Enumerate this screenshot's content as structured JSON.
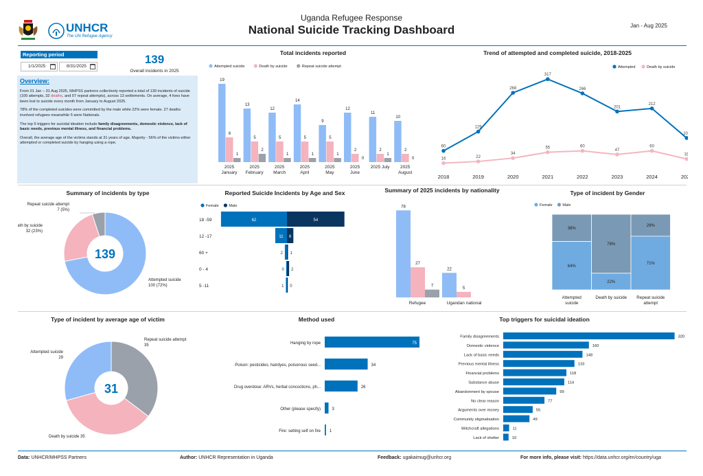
{
  "header": {
    "subtitle": "Uganda Refugee Response",
    "title": "National Suicide Tracking Dashboard",
    "date_range": "Jan - Aug 2025",
    "logo_word": "UNHCR",
    "logo_tagline": "The UN Refugee Agency"
  },
  "reporting": {
    "label": "Reporting period",
    "start": "1/1/2025",
    "end": "8/31/2025",
    "total": "139",
    "total_label": "Overall incidents in 2025"
  },
  "overview": {
    "title": "Overview:",
    "p1_a": "From 01 Jan – 31 Aug 2025, MHPSS partners collectively reported a total of 139 incidents of suicide (100 attempts, 32 ",
    "p1_red": "deaths",
    "p1_b": ", and 07 repeat attempts), across 13 settlements. On average, 4 lives have been lost to suicide every month from January to August 2025.",
    "p2": "78% of the completed suicides were committed by the male while 22% were female. 27 deaths involved refugees meanwhile 5 were Nationals.",
    "p3_a": "The top 5 triggers for suicidal ideation include ",
    "p3_b": "family disagreements, domestic violence, lack of basic needs, previous mental illness, and financial problems.",
    "p4": "Overall, the average age of the victims stands at 31 years of age. Majority - 56% of the victims either attempted or completed suicide by hanging using a rope."
  },
  "footer": {
    "data_label": "Data:",
    "data_value": "UNHCR/MHPSS Partners",
    "author_label": "Author:",
    "author_value": "UNHCR Representation in Uganda",
    "feedback_label": "Feedback:",
    "feedback_value": "ugakaimug@unhcr.org",
    "more_label": "For more info, please visit:",
    "more_value": "https://data.unhcr.org/en/country/uga"
  },
  "colors": {
    "blue": "#0072bc",
    "light_blue": "#8fbcf7",
    "pink": "#f4b3bd",
    "grey": "#9aa1ab",
    "navy": "#0a3560",
    "pink_line": "#f3b6c0"
  },
  "chart_data": [
    {
      "id": "total_incidents",
      "type": "bar",
      "title": "Total incidents reported",
      "categories": [
        [
          "2025",
          "January"
        ],
        [
          "2025",
          "February"
        ],
        [
          "2025",
          "March"
        ],
        [
          "2025",
          "April"
        ],
        [
          "2025",
          "May"
        ],
        [
          "2025",
          "June"
        ],
        [
          "2025 July",
          ""
        ],
        [
          "2025",
          "August"
        ]
      ],
      "series": [
        {
          "name": "Attempted suicide",
          "values": [
            19,
            13,
            12,
            14,
            9,
            12,
            11,
            10
          ]
        },
        {
          "name": "Death by suicide",
          "values": [
            6,
            5,
            5,
            5,
            5,
            2,
            2,
            2
          ]
        },
        {
          "name": "Repeat suicide attempt",
          "values": [
            1,
            2,
            1,
            1,
            1,
            0,
            1,
            0
          ]
        }
      ],
      "legend": "top"
    },
    {
      "id": "trend",
      "type": "line",
      "title": "Trend of attempted and completed suicide, 2018-2025",
      "x": [
        "2018",
        "2019",
        "2020",
        "2021",
        "2022",
        "2023",
        "2024",
        "2025"
      ],
      "series": [
        {
          "name": "Attempted",
          "values": [
            60,
            129,
            268,
            317,
            266,
            201,
            212,
            106
          ]
        },
        {
          "name": "Death by suicide",
          "values": [
            16,
            22,
            34,
            55,
            60,
            47,
            60,
            31
          ]
        }
      ],
      "legend": "top-right"
    },
    {
      "id": "by_type",
      "type": "pie",
      "title": "Summary of incidents by type",
      "center_label": "139",
      "slices": [
        {
          "name": "Attempted suicide",
          "value": 100,
          "label": "Attempted suicide",
          "sub": "100 (72%)"
        },
        {
          "name": "Death by suicide",
          "value": 32,
          "label": "Death by suicide",
          "sub": "32 (23%)"
        },
        {
          "name": "Repeat suicide attempt",
          "value": 7,
          "label": "Repeat suicide attempt",
          "sub": "7 (5%)"
        }
      ]
    },
    {
      "id": "age_sex",
      "type": "bar",
      "title": "Reported Suicide Incidents by Age and Sex",
      "categories": [
        "18 -59",
        "12 -17",
        "60 +",
        "0 - 4",
        "5 -11"
      ],
      "series": [
        {
          "name": "Female",
          "values": [
            62,
            11,
            2,
            0,
            1
          ]
        },
        {
          "name": "Male",
          "values": [
            54,
            6,
            1,
            2,
            0
          ]
        }
      ],
      "legend": "top-left"
    },
    {
      "id": "nationality",
      "type": "bar",
      "title": "Summary of 2025 incidents by nationality",
      "categories": [
        "Refugee",
        "Ugandan national"
      ],
      "series": [
        {
          "name": "Attempted suicide",
          "values": [
            78,
            22
          ]
        },
        {
          "name": "Death by suicide",
          "values": [
            27,
            5
          ]
        },
        {
          "name": "Repeat suicide attempt",
          "values": [
            7,
            0
          ]
        }
      ]
    },
    {
      "id": "gender",
      "type": "bar",
      "title": "Type of incident by Gender",
      "categories": [
        "Attempted suicide",
        "Death by suicide",
        "Repeat suicide attempt"
      ],
      "series": [
        {
          "name": "Female",
          "values": [
            64,
            22,
            71
          ]
        },
        {
          "name": "Male",
          "values": [
            36,
            78,
            29
          ]
        }
      ],
      "legend": "top"
    },
    {
      "id": "avg_age",
      "type": "pie",
      "title": "Type of incident by average age of victim",
      "center_label": "31",
      "slices": [
        {
          "name": "Repeat suicide attempt",
          "value": 35,
          "label": "Repeat suicide attempt",
          "sub": "35"
        },
        {
          "name": "Death by suicide",
          "value": 35,
          "label": "Death by suicide 35",
          "sub": ""
        },
        {
          "name": "Attempted suicide",
          "value": 29,
          "label": "Attempted suicide",
          "sub": "29"
        }
      ]
    },
    {
      "id": "method",
      "type": "bar",
      "title": "Method used",
      "categories": [
        "Hanging by rope",
        "Poison: pesticides, hairdyes, poisonous seed...",
        "Drug overdose: ARVs, herbal concoctions, ph...",
        "Other (please specify)",
        "Fire: setting self on fire"
      ],
      "values": [
        75,
        34,
        26,
        3,
        1
      ]
    },
    {
      "id": "triggers",
      "type": "bar",
      "title": "Top triggers for suicidal ideation",
      "categories": [
        "Family disagreements",
        "Domestic violence",
        "Lack of basic needs",
        "Previous mental illness",
        "Financial problems",
        "Substance abuse",
        "Abandonment by spouse",
        "No clear reason",
        "Arguments over money",
        "Community stigmatisation",
        "Witchcraft allegations",
        "Lack of shelter"
      ],
      "values": [
        320,
        160,
        148,
        133,
        118,
        114,
        99,
        77,
        55,
        49,
        11,
        10
      ]
    }
  ]
}
